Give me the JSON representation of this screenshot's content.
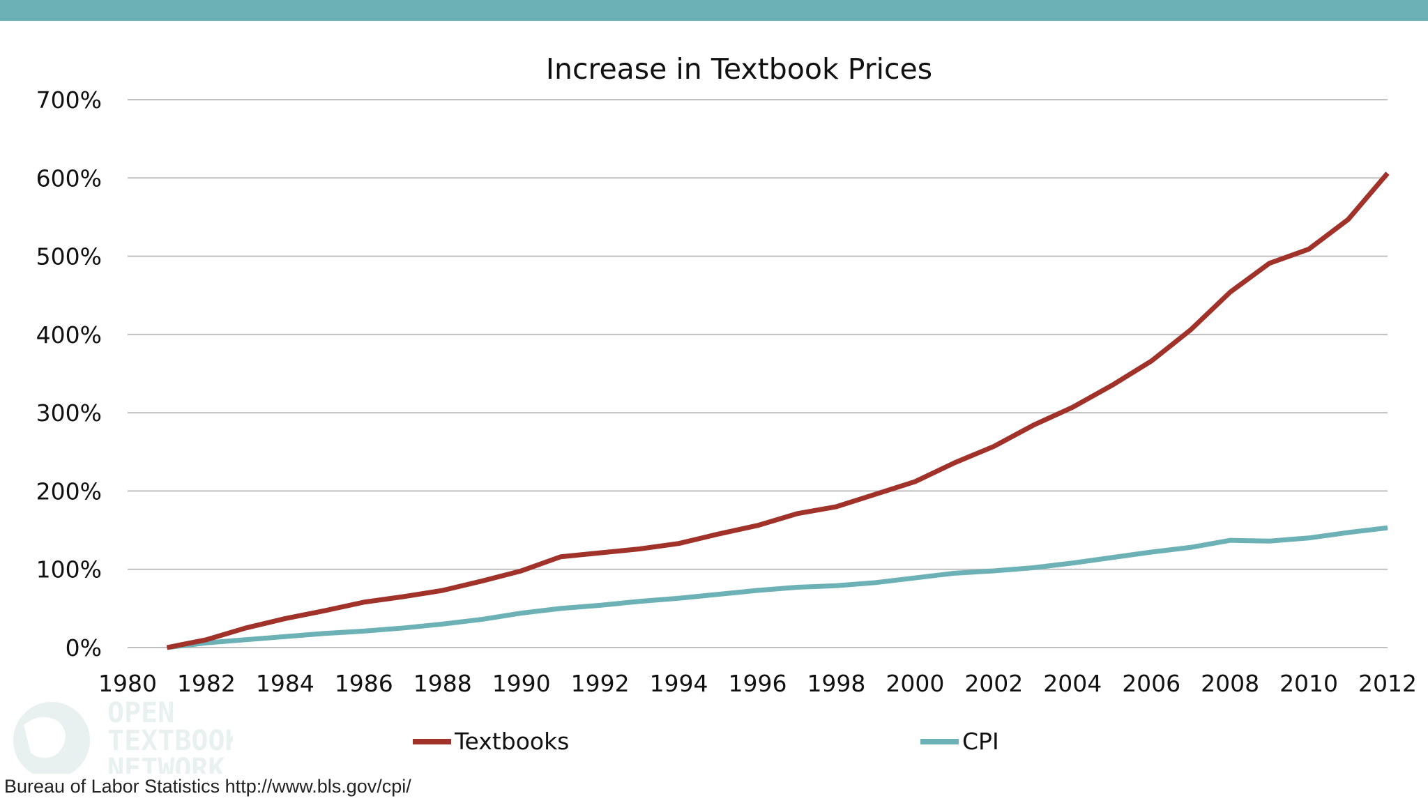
{
  "colors": {
    "top_bar": "#6BB1B5",
    "textbooks": "#A0322A",
    "cpi": "#6BB1B5",
    "grid": "#BFBFBF"
  },
  "watermark": {
    "lines": [
      "OPEN",
      "TEXTBOOK",
      "NETWORK"
    ],
    "icon": "globe-icon"
  },
  "source": "Bureau of Labor Statistics http://www.bls.gov/cpi/",
  "chart_data": {
    "type": "line",
    "title": "Increase in Textbook Prices",
    "xlabel": "",
    "ylabel": "",
    "x": [
      1981,
      1982,
      1983,
      1984,
      1985,
      1986,
      1987,
      1988,
      1989,
      1990,
      1991,
      1992,
      1993,
      1994,
      1995,
      1996,
      1997,
      1998,
      1999,
      2000,
      2001,
      2002,
      2003,
      2004,
      2005,
      2006,
      2007,
      2008,
      2009,
      2010,
      2011,
      2012
    ],
    "xlim": [
      1980,
      2012
    ],
    "ylim": [
      0,
      700
    ],
    "x_ticks": [
      1980,
      1982,
      1984,
      1986,
      1988,
      1990,
      1992,
      1994,
      1996,
      1998,
      2000,
      2002,
      2004,
      2006,
      2008,
      2010,
      2012
    ],
    "x_tick_labels": [
      "1980",
      "1982",
      "1984",
      "1986",
      "1988",
      "1990",
      "1992",
      "1994",
      "1996",
      "1998",
      "2000",
      "2002",
      "2004",
      "2006",
      "2008",
      "2010",
      "2012"
    ],
    "y_ticks": [
      0,
      100,
      200,
      300,
      400,
      500,
      600,
      700
    ],
    "y_tick_labels": [
      "0%",
      "100%",
      "200%",
      "300%",
      "400%",
      "500%",
      "600%",
      "700%"
    ],
    "grid": true,
    "legend_position": "bottom",
    "series": [
      {
        "name": "Textbooks",
        "color": "#A0322A",
        "values": [
          0,
          10,
          25,
          37,
          47,
          58,
          65,
          73,
          85,
          98,
          116,
          121,
          126,
          133,
          145,
          156,
          171,
          180,
          196,
          212,
          236,
          257,
          284,
          307,
          335,
          366,
          406,
          454,
          491,
          509,
          547,
          606
        ]
      },
      {
        "name": "CPI",
        "color": "#6BB1B5",
        "values": [
          0,
          6,
          10,
          14,
          18,
          21,
          25,
          30,
          36,
          44,
          50,
          54,
          59,
          63,
          68,
          73,
          77,
          79,
          83,
          89,
          95,
          98,
          102,
          108,
          115,
          122,
          128,
          137,
          136,
          140,
          147,
          153
        ]
      }
    ]
  }
}
